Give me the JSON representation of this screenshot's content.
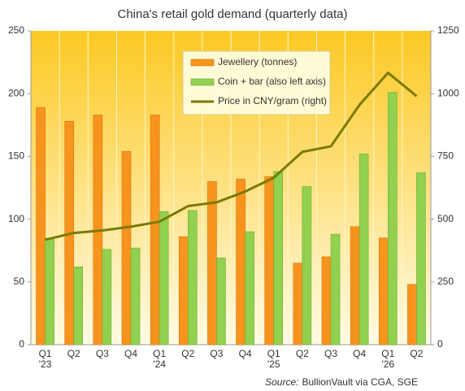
{
  "chart_data": {
    "type": "combo",
    "title": "China's retail gold demand (quarterly  data)",
    "source_label": "Source:",
    "source": "BullionVault via CGA, SGE",
    "categories": [
      "Q1\n'23",
      "Q2",
      "Q3",
      "Q4",
      "Q1\n'24",
      "Q2",
      "Q3",
      "Q4",
      "Q1\n'25",
      "Q2",
      "Q3",
      "Q4",
      "Q1\n'26",
      "Q2"
    ],
    "series": [
      {
        "name": "Jewellery (tonnes)",
        "type": "bar",
        "color": "#f7941d",
        "values": [
          189,
          178,
          183,
          154,
          183,
          86,
          130,
          132,
          134,
          65,
          70,
          94,
          85,
          48
        ]
      },
      {
        "name": "Coin + bar (also left axis)",
        "type": "bar",
        "color": "#92d050",
        "values": [
          85,
          62,
          76,
          77,
          106,
          107,
          69,
          90,
          138,
          126,
          88,
          152,
          201,
          137
        ]
      },
      {
        "name": "Price in CNY/gram (right)",
        "type": "line",
        "axis": "y2",
        "color": "#7a7a00",
        "values": [
          418,
          445,
          455,
          470,
          490,
          552,
          567,
          610,
          665,
          768,
          790,
          955,
          1083,
          990
        ]
      }
    ],
    "ylim": [
      0,
      250
    ],
    "yticks": [
      0,
      50,
      100,
      150,
      200,
      250
    ],
    "y2lim": [
      0,
      1250
    ],
    "y2ticks": [
      0,
      250,
      500,
      750,
      1000,
      1250
    ]
  }
}
